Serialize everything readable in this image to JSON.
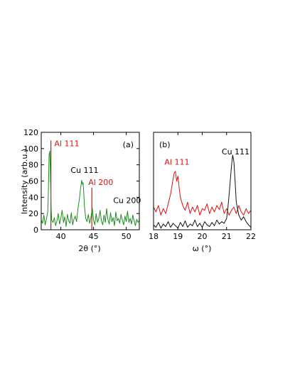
{
  "chart_data": [
    {
      "panel_label": "(a)",
      "type": "line",
      "xlabel": "2θ (°)",
      "ylabel": "Intensity (arb.u.)",
      "xlim": [
        37.0,
        52.0
      ],
      "ylim": [
        0,
        120
      ],
      "xticks": [
        40,
        45,
        50
      ],
      "yticks": [
        0,
        20,
        40,
        60,
        80,
        100,
        120
      ],
      "series": [
        {
          "color": "#1f8b1f",
          "x": [
            37.0,
            37.2,
            37.4,
            37.6,
            37.8,
            38.0,
            38.1,
            38.2,
            38.3,
            38.4,
            38.5,
            38.6,
            38.8,
            39.0,
            39.2,
            39.4,
            39.6,
            39.8,
            40.0,
            40.2,
            40.4,
            40.6,
            40.8,
            41.0,
            41.2,
            41.4,
            41.6,
            41.8,
            42.0,
            42.2,
            42.4,
            42.6,
            42.8,
            43.0,
            43.2,
            43.3,
            43.4,
            43.5,
            43.6,
            43.8,
            44.0,
            44.2,
            44.4,
            44.6,
            44.8,
            45.0,
            45.2,
            45.4,
            45.6,
            45.8,
            46.0,
            46.2,
            46.4,
            46.6,
            46.8,
            47.0,
            47.2,
            47.4,
            47.6,
            47.8,
            48.0,
            48.2,
            48.4,
            48.6,
            48.8,
            49.0,
            49.2,
            49.4,
            49.6,
            49.8,
            50.0,
            50.2,
            50.4,
            50.6,
            50.8,
            51.0,
            51.2,
            51.4,
            51.6,
            51.8,
            52.0
          ],
          "y": [
            12,
            8,
            18,
            6,
            14,
            22,
            48,
            92,
            97,
            70,
            30,
            12,
            9,
            15,
            5,
            11,
            20,
            7,
            14,
            24,
            9,
            16,
            4,
            19,
            11,
            8,
            21,
            6,
            13,
            17,
            10,
            25,
            36,
            50,
            61,
            56,
            58,
            46,
            30,
            14,
            10,
            19,
            8,
            15,
            27,
            12,
            6,
            20,
            9,
            14,
            24,
            11,
            6,
            18,
            9,
            26,
            13,
            7,
            21,
            10,
            15,
            5,
            22,
            11,
            14,
            8,
            19,
            12,
            6,
            17,
            10,
            23,
            9,
            14,
            7,
            18,
            11,
            5,
            13,
            9,
            12
          ]
        }
      ],
      "reference_lines": [
        {
          "x": 38.48,
          "height": 110,
          "color": "#e01010"
        },
        {
          "x": 44.74,
          "height": 52,
          "color": "#e01010"
        }
      ],
      "annotations": [
        {
          "text": "Al 111",
          "x": 39.0,
          "y": 103,
          "color": "#e01010"
        },
        {
          "text": "Cu 111",
          "x": 41.5,
          "y": 70,
          "color": "#000000"
        },
        {
          "text": "Al 200",
          "x": 44.2,
          "y": 55,
          "color": "#e01010"
        },
        {
          "text": "Cu 200",
          "x": 48.0,
          "y": 33,
          "color": "#000000"
        }
      ]
    },
    {
      "panel_label": "(b)",
      "type": "line",
      "xlabel": "ω (°)",
      "ylabel": "",
      "xlim": [
        18.0,
        22.0
      ],
      "ylim": [
        0,
        120
      ],
      "xticks": [
        18,
        19,
        20,
        21,
        22
      ],
      "yticks": [],
      "series": [
        {
          "color": "#e01010",
          "x": [
            18.0,
            18.1,
            18.2,
            18.3,
            18.4,
            18.5,
            18.6,
            18.7,
            18.8,
            18.85,
            18.9,
            18.95,
            19.0,
            19.05,
            19.1,
            19.2,
            19.3,
            19.4,
            19.5,
            19.6,
            19.7,
            19.8,
            19.9,
            20.0,
            20.1,
            20.2,
            20.3,
            20.4,
            20.5,
            20.6,
            20.7,
            20.8,
            20.9,
            21.0,
            21.1,
            21.2,
            21.3,
            21.4,
            21.5,
            21.6,
            21.7,
            21.8,
            21.9,
            22.0
          ],
          "y": [
            28,
            22,
            30,
            18,
            26,
            20,
            32,
            44,
            62,
            70,
            72,
            60,
            66,
            52,
            40,
            30,
            24,
            34,
            20,
            28,
            22,
            30,
            18,
            26,
            24,
            32,
            20,
            28,
            22,
            30,
            25,
            34,
            20,
            26,
            18,
            24,
            28,
            20,
            30,
            22,
            18,
            26,
            20,
            24
          ]
        },
        {
          "color": "#111111",
          "x": [
            18.0,
            18.1,
            18.2,
            18.3,
            18.4,
            18.5,
            18.6,
            18.7,
            18.8,
            18.9,
            19.0,
            19.1,
            19.2,
            19.3,
            19.4,
            19.5,
            19.6,
            19.7,
            19.8,
            19.9,
            20.0,
            20.1,
            20.2,
            20.3,
            20.4,
            20.5,
            20.6,
            20.7,
            20.8,
            20.9,
            21.0,
            21.05,
            21.1,
            21.15,
            21.2,
            21.25,
            21.3,
            21.35,
            21.4,
            21.5,
            21.6,
            21.7,
            21.8,
            21.9,
            22.0
          ],
          "y": [
            6,
            3,
            9,
            2,
            7,
            4,
            10,
            3,
            8,
            5,
            2,
            9,
            4,
            11,
            3,
            7,
            5,
            12,
            4,
            8,
            3,
            10,
            6,
            4,
            9,
            5,
            12,
            7,
            10,
            8,
            14,
            26,
            42,
            60,
            78,
            92,
            84,
            60,
            34,
            18,
            12,
            16,
            10,
            6,
            3
          ]
        }
      ],
      "reference_lines": [],
      "annotations": [
        {
          "text": "Al 111",
          "x": 18.45,
          "y": 80,
          "color": "#e01010"
        },
        {
          "text": "Cu 111",
          "x": 20.8,
          "y": 93,
          "color": "#000000"
        }
      ]
    }
  ]
}
